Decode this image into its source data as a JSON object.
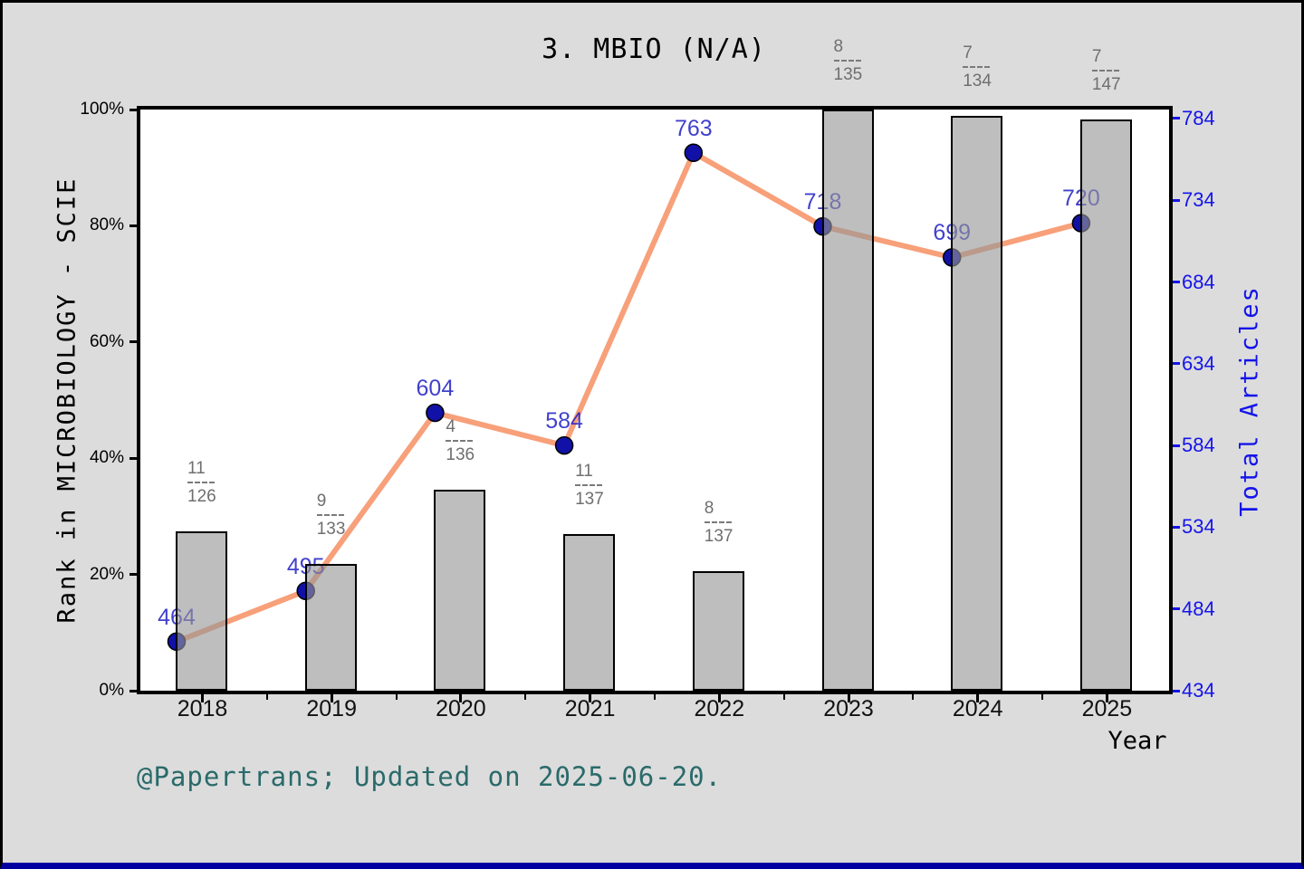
{
  "title": "3. MBIO (N/A)",
  "footer": "@Papertrans; Updated on 2025-06-20.",
  "colors": {
    "background": "#dcdcdc",
    "plot_background": "#ffffff",
    "bar_fill": "#bebebe",
    "bar_edge": "#000000",
    "line": "#f7a07a",
    "marker": "#1111a8",
    "point_label": "#1e1ec3",
    "right_axis_blue": "#1414eb",
    "fraction_gray": "#6f6f6f",
    "footer_teal": "#2a6a6a",
    "bottom_accent": "#0000a0"
  },
  "chart_data": {
    "type": "combo",
    "title": "3. MBIO (N/A)",
    "categories": [
      "2018",
      "2019",
      "2020",
      "2021",
      "2022",
      "2023",
      "2024",
      "2025"
    ],
    "series": [
      {
        "name": "Rank in MICROBIOLOGY - SCIE",
        "type": "bar",
        "axis": "left",
        "unit": "percent",
        "values": [
          27.4,
          21.8,
          34.6,
          27.0,
          20.6,
          100.0,
          98.9,
          98.3
        ],
        "rank_fractions": [
          {
            "numerator": "11",
            "denominator": "126"
          },
          {
            "numerator": "9",
            "denominator": "133"
          },
          {
            "numerator": "4",
            "denominator": "136"
          },
          {
            "numerator": "11",
            "denominator": "137"
          },
          {
            "numerator": "8",
            "denominator": "137"
          },
          {
            "numerator": "8",
            "denominator": "135"
          },
          {
            "numerator": "7",
            "denominator": "134"
          },
          {
            "numerator": "7",
            "denominator": "147"
          }
        ]
      },
      {
        "name": "Total Articles",
        "type": "line",
        "axis": "right",
        "values": [
          464,
          495,
          604,
          584,
          763,
          718,
          699,
          720
        ],
        "point_labels": [
          "464",
          "495",
          "604",
          "584",
          "763",
          "718",
          "699",
          "720"
        ]
      }
    ],
    "left_axis": {
      "label": "Rank in MICROBIOLOGY - SCIE",
      "ticks": [
        "0%",
        "20%",
        "40%",
        "60%",
        "80%",
        "100%"
      ],
      "tick_values": [
        0,
        20,
        40,
        60,
        80,
        100
      ],
      "range": [
        0,
        100
      ]
    },
    "right_axis": {
      "label": "Total Articles",
      "ticks": [
        "434",
        "484",
        "534",
        "584",
        "634",
        "684",
        "734",
        "784"
      ],
      "tick_values": [
        434,
        484,
        534,
        584,
        634,
        684,
        734,
        784
      ],
      "range": [
        434,
        789
      ]
    },
    "x_axis": {
      "label": "Year",
      "ticks": [
        "2018",
        "2019",
        "2020",
        "2021",
        "2022",
        "2023",
        "2024",
        "2025"
      ]
    },
    "grid": false,
    "legend": "none"
  }
}
